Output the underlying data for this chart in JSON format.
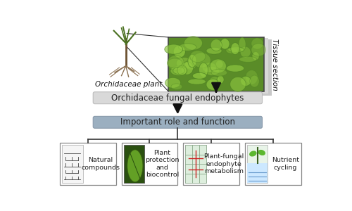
{
  "bg_color": "#ffffff",
  "box1_text": "Orchidaceae fungal endophytes",
  "box1_color": "#d9d9d9",
  "box2_text": "Important role and function",
  "box2_color": "#9bafc0",
  "top_label": "Orchidaceae plant",
  "side_label": "Tissue section",
  "bottom_boxes": [
    {
      "label": "Natural\ncompounds"
    },
    {
      "label": "Plant\nprotection\nand\nbiocontrol"
    },
    {
      "label": "Plant-fungal\nendophyte\nmetabolism"
    },
    {
      "label": "Nutrient\ncycling"
    }
  ],
  "arrow_color": "#111111",
  "tissue_img_color1": "#5a8c28",
  "tissue_img_color2": "#3d6b1a",
  "tissue_cell_color": "#7ab830",
  "tissue_shadow": "#cccccc",
  "plant_stem_color": "#6b5030",
  "plant_leaf_color": "#4a7020",
  "plant_root_color": "#8a7050",
  "box_edge_color": "#aaaaaa",
  "line_color": "#333333"
}
